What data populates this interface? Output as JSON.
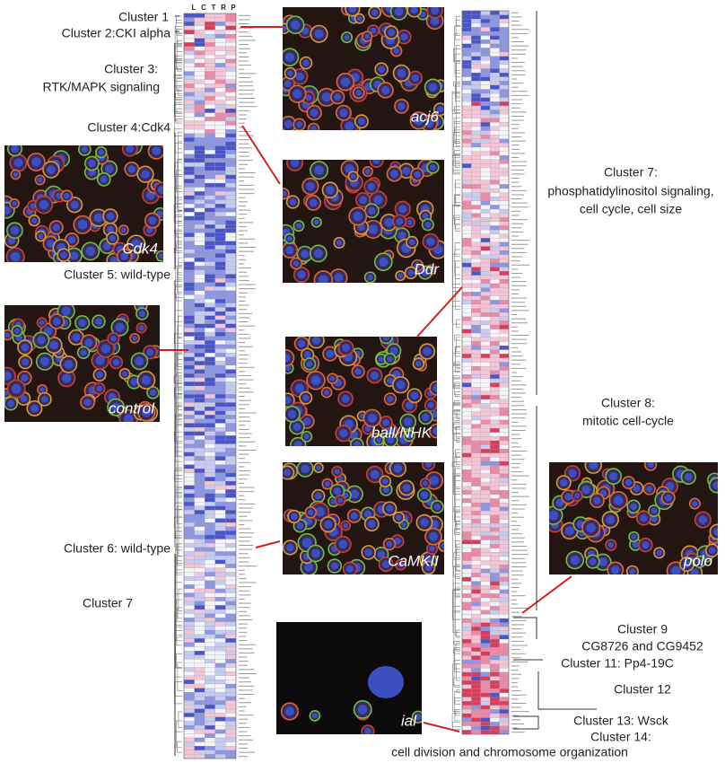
{
  "heatmap": {
    "columns": [
      "L",
      "C",
      "T",
      "R",
      "P"
    ]
  },
  "images": [
    {
      "label": "acj6"
    },
    {
      "label": "Ddr"
    },
    {
      "label": "ball/NHK"
    },
    {
      "label": "CaMKII"
    },
    {
      "label": "Cdk4"
    },
    {
      "label": "control"
    },
    {
      "label": "polo"
    },
    {
      "label": "ial"
    }
  ],
  "left_clusters": [
    "Cluster 1",
    "Cluster 2:CKI alpha",
    "Cluster 3:",
    "RTK/MAPK signaling",
    "Cluster 4:Cdk4",
    "Cluster 5: wild-type",
    "Cluster 6: wild-type",
    "Cluster 7"
  ],
  "right_clusters": [
    "Cluster 7:",
    "phosphatidylinositol signaling,",
    "cell cycle, cell size",
    "Cluster 8:",
    "mitotic cell-cycle",
    "Cluster 9",
    "CG8726 and CG9452",
    "Cluster 11: Pp4-19C",
    "Cluster 12",
    "Cluster 13: Wsck",
    "Cluster 14:",
    "cell division and chromosome organization"
  ]
}
